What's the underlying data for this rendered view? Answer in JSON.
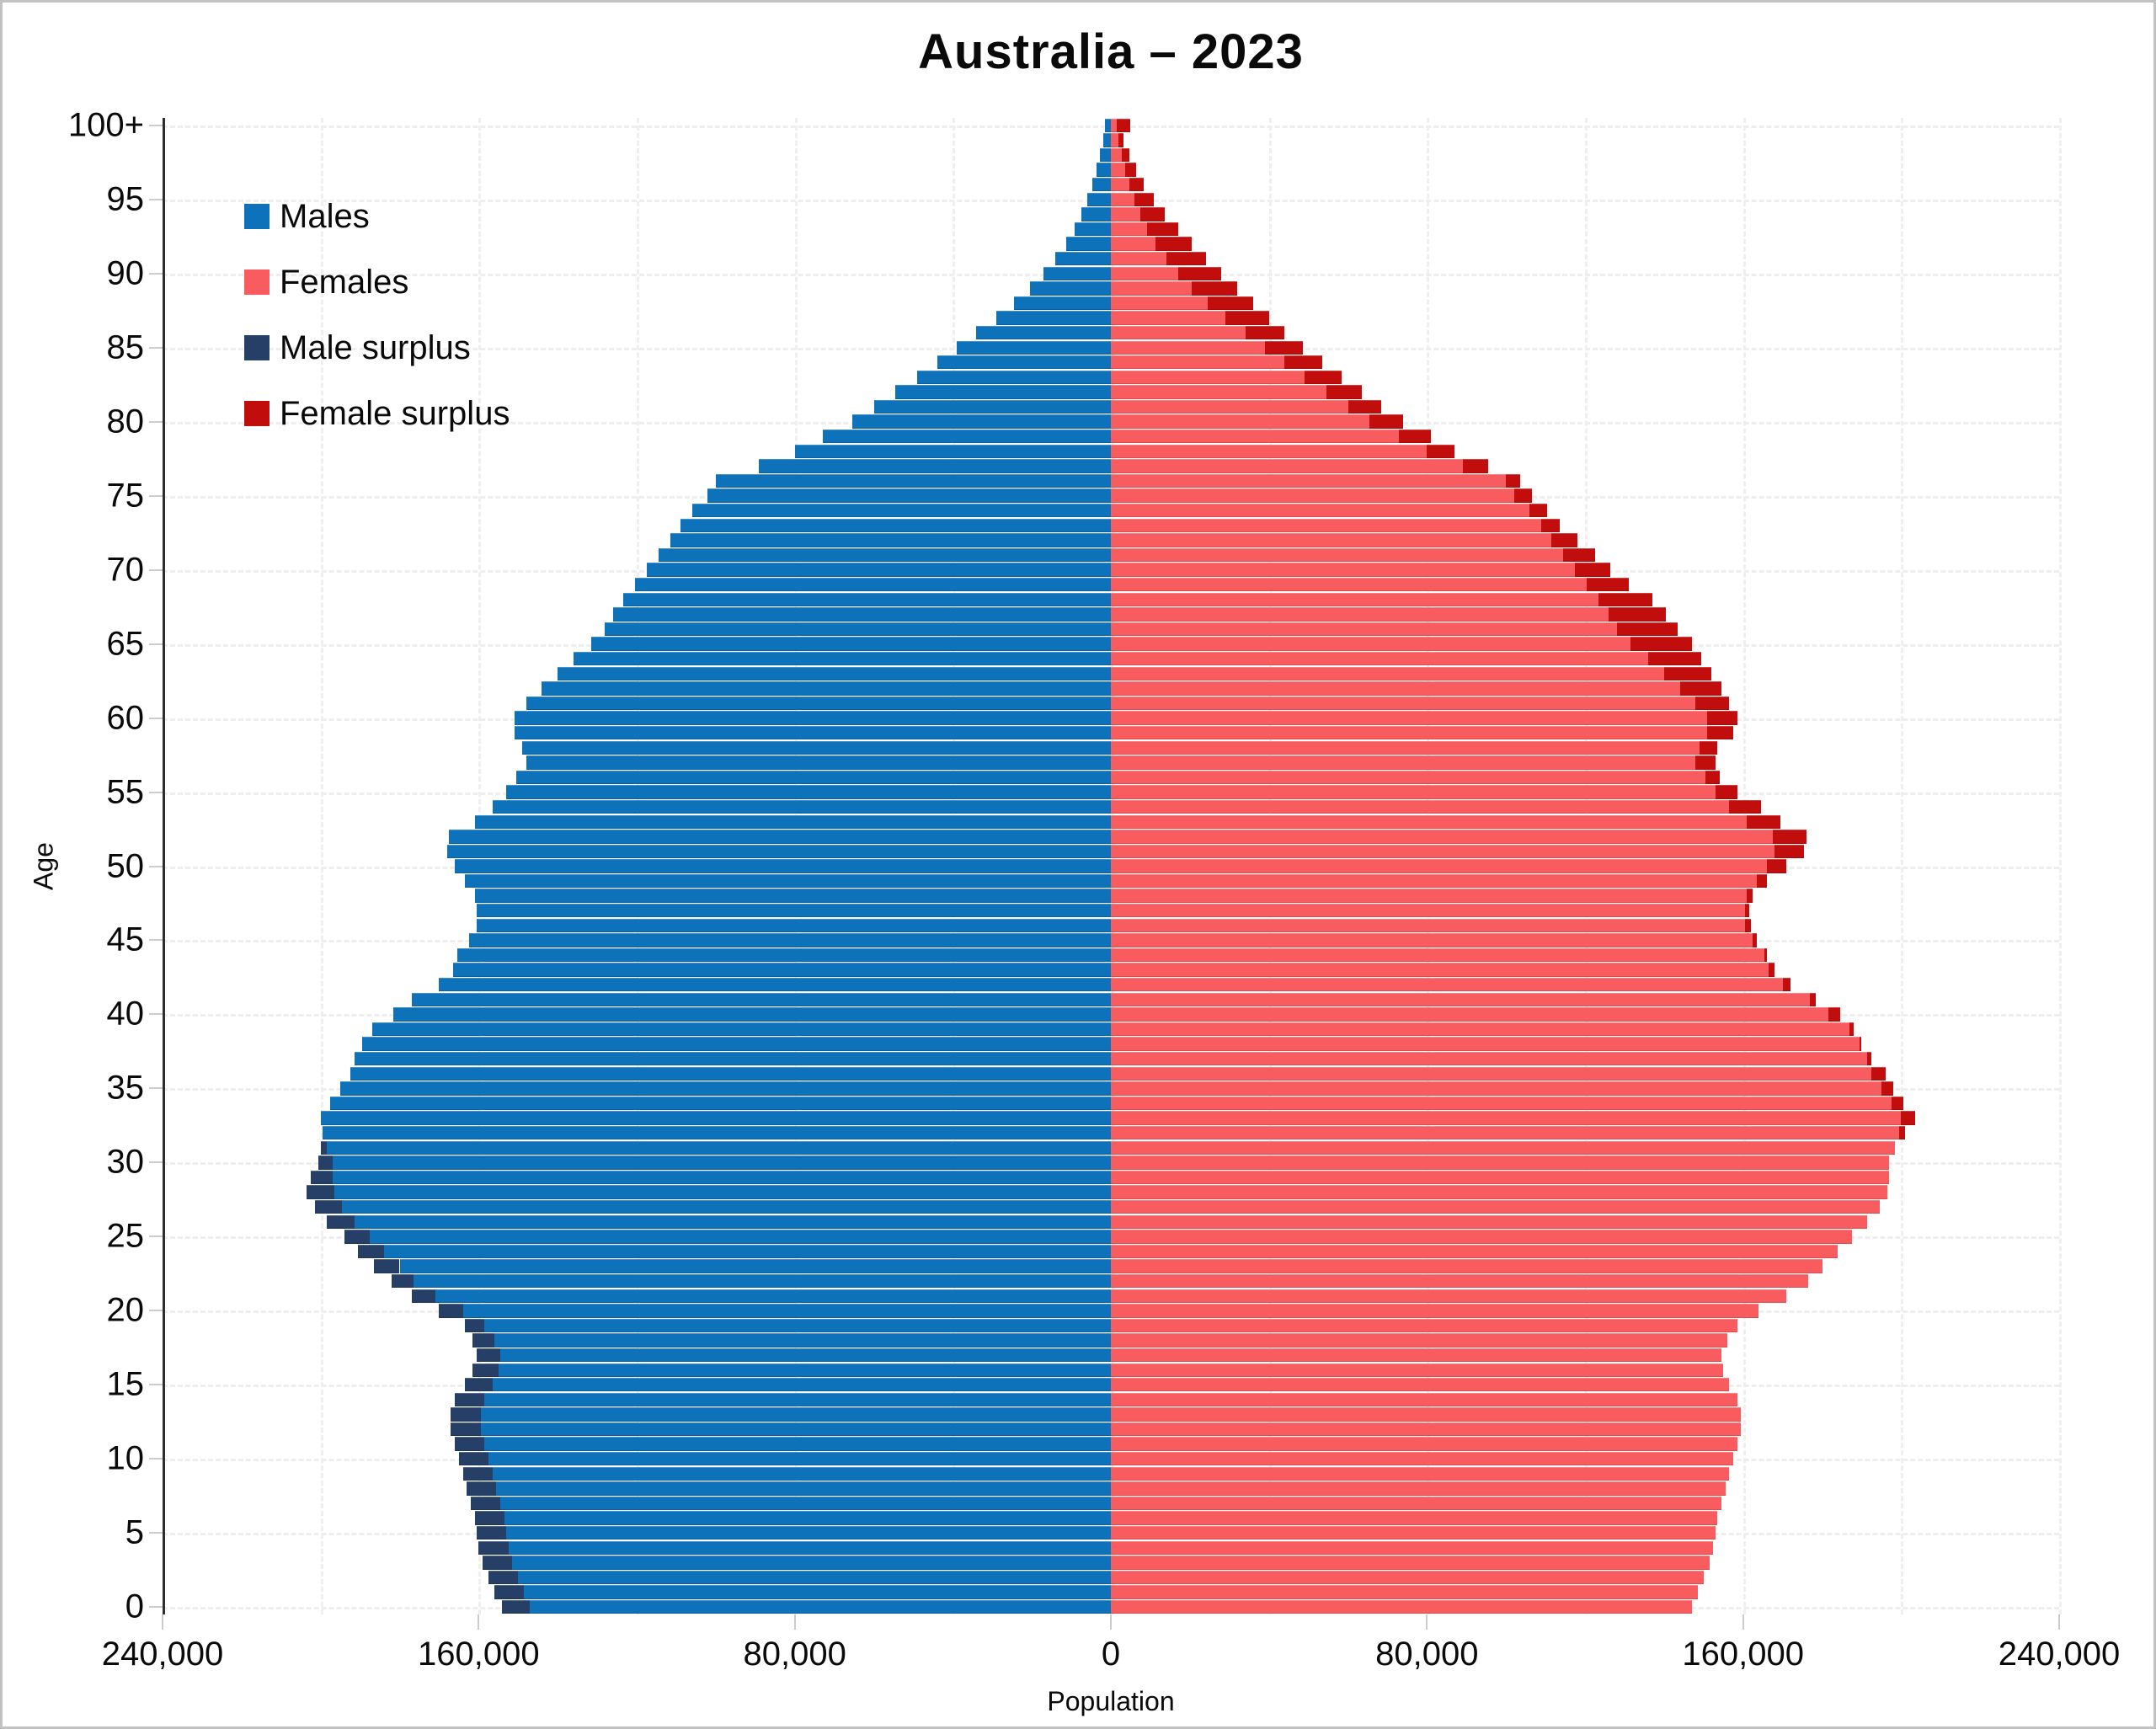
{
  "title": "Australia – 2023",
  "axes": {
    "y_label": "Age",
    "x_label": "Population",
    "y_tick_ages": [
      0,
      5,
      10,
      15,
      20,
      25,
      30,
      35,
      40,
      45,
      50,
      55,
      60,
      65,
      70,
      75,
      80,
      85,
      90,
      95,
      100
    ],
    "y_tick_labels": [
      "0",
      "5",
      "10",
      "15",
      "20",
      "25",
      "30",
      "35",
      "40",
      "45",
      "50",
      "55",
      "60",
      "65",
      "70",
      "75",
      "80",
      "85",
      "90",
      "95",
      "100+"
    ],
    "x_tick_values": [
      -240000,
      -160000,
      -80000,
      0,
      80000,
      160000,
      240000
    ],
    "x_tick_labels": [
      "240,000",
      "160,000",
      "80,000",
      "0",
      "80,000",
      "160,000",
      "240,000"
    ]
  },
  "legend": [
    {
      "name": "males",
      "label": "Males",
      "color": "#0d72ba"
    },
    {
      "name": "females",
      "label": "Females",
      "color": "#f85c5e"
    },
    {
      "name": "male-surplus",
      "label": "Male surplus",
      "color": "#253f66"
    },
    {
      "name": "female-surplus",
      "label": "Female surplus",
      "color": "#c20d0d"
    }
  ],
  "colors": {
    "males": "#0d72ba",
    "females": "#f85c5e",
    "male_surplus": "#253f66",
    "female_surplus": "#c20d0d",
    "grid": "#eeeeee",
    "center_line": "#2e2e2e"
  },
  "chart_data": {
    "type": "bar",
    "subtype": "population-pyramid",
    "title": "Australia – 2023",
    "xlabel": "Population",
    "ylabel": "Age",
    "x_range": [
      -240000,
      240000
    ],
    "grid_step_x": 40000,
    "grid_step_age": 5,
    "ages": [
      0,
      1,
      2,
      3,
      4,
      5,
      6,
      7,
      8,
      9,
      10,
      11,
      12,
      13,
      14,
      15,
      16,
      17,
      18,
      19,
      20,
      21,
      22,
      23,
      24,
      25,
      26,
      27,
      28,
      29,
      30,
      31,
      32,
      33,
      34,
      35,
      36,
      37,
      38,
      39,
      40,
      41,
      42,
      43,
      44,
      45,
      46,
      47,
      48,
      49,
      50,
      51,
      52,
      53,
      54,
      55,
      56,
      57,
      58,
      59,
      60,
      61,
      62,
      63,
      64,
      65,
      66,
      67,
      68,
      69,
      70,
      71,
      72,
      73,
      74,
      75,
      76,
      77,
      78,
      79,
      80,
      81,
      82,
      83,
      84,
      85,
      86,
      87,
      88,
      89,
      90,
      91,
      92,
      93,
      94,
      95,
      96,
      97,
      98,
      99,
      100
    ],
    "series": [
      {
        "name": "Males",
        "values": [
          154000,
          156000,
          157500,
          159000,
          160000,
          160500,
          161000,
          162000,
          163000,
          164000,
          165000,
          166000,
          167000,
          167000,
          166000,
          163500,
          161500,
          160500,
          161500,
          163500,
          170000,
          177000,
          182000,
          186500,
          190500,
          194000,
          198500,
          201500,
          203500,
          202500,
          200500,
          200000,
          199500,
          200000,
          197500,
          195000,
          192500,
          191500,
          189500,
          187000,
          181500,
          177000,
          170000,
          166500,
          165500,
          162500,
          160500,
          160500,
          161000,
          163500,
          166000,
          168000,
          167500,
          161000,
          156500,
          153000,
          150500,
          148000,
          149000,
          151000,
          151000,
          148000,
          144000,
          140000,
          136000,
          131500,
          128000,
          126000,
          123500,
          120500,
          117500,
          114500,
          111500,
          109000,
          106000,
          102000,
          100000,
          89000,
          80000,
          73000,
          65500,
          60000,
          54500,
          49000,
          44000,
          39000,
          34000,
          29000,
          24500,
          20500,
          17000,
          14000,
          11300,
          9200,
          7400,
          5900,
          4700,
          3600,
          2700,
          1900,
          1400
        ]
      },
      {
        "name": "Females",
        "values": [
          147000,
          148500,
          150000,
          151500,
          152500,
          153000,
          153500,
          154500,
          155500,
          156500,
          157500,
          158500,
          159500,
          159500,
          158500,
          156500,
          155000,
          154500,
          156000,
          158500,
          164000,
          171000,
          176500,
          180000,
          184000,
          187500,
          191500,
          194500,
          196500,
          197000,
          197000,
          198500,
          201000,
          203500,
          200500,
          198000,
          196000,
          192500,
          190000,
          188000,
          184500,
          178500,
          172000,
          168000,
          166000,
          163500,
          162000,
          161500,
          162500,
          166000,
          171000,
          175500,
          176000,
          169500,
          164500,
          158500,
          154000,
          153000,
          153500,
          157500,
          158500,
          156500,
          154500,
          152000,
          149500,
          147000,
          143500,
          140500,
          137000,
          131000,
          126500,
          122500,
          118000,
          113500,
          110500,
          106500,
          103500,
          95500,
          87000,
          81000,
          74000,
          68500,
          63500,
          58500,
          53500,
          48500,
          44000,
          40000,
          36000,
          32000,
          28000,
          24000,
          20500,
          17000,
          13600,
          10800,
          8400,
          6300,
          4600,
          3300,
          5000
        ]
      }
    ],
    "legend_entries": [
      "Males",
      "Females",
      "Male surplus",
      "Female surplus"
    ],
    "notes": "Surplus segments drawn at bar tips: dark navy where males exceed females, dark red where females exceed males."
  }
}
